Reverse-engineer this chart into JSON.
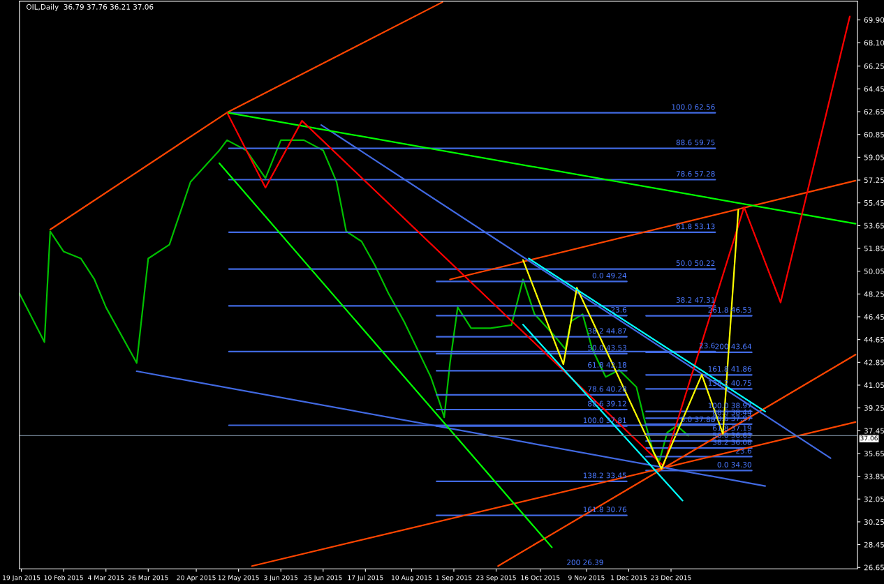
{
  "chart_data": {
    "type": "line",
    "title": "OIL,Daily  36.79 37.76 36.21 37.06",
    "xlim": [
      "2015-01-18",
      "2016-03-29"
    ],
    "ylim": [
      26.54,
      71.38
    ],
    "xticks": [
      {
        "value": "2015-01-19",
        "label": "19 Jan 2015"
      },
      {
        "value": "2015-02-10",
        "label": "10 Feb 2015"
      },
      {
        "value": "2015-03-04",
        "label": "4 Mar 2015"
      },
      {
        "value": "2015-03-26",
        "label": "26 Mar 2015"
      },
      {
        "value": "2015-04-20",
        "label": "20 Apr 2015"
      },
      {
        "value": "2015-05-12",
        "label": "12 May 2015"
      },
      {
        "value": "2015-06-03",
        "label": "3 Jun 2015"
      },
      {
        "value": "2015-06-25",
        "label": "25 Jun 2015"
      },
      {
        "value": "2015-07-17",
        "label": "17 Jul 2015"
      },
      {
        "value": "2015-08-10",
        "label": "10 Aug 2015"
      },
      {
        "value": "2015-09-01",
        "label": "1 Sep 2015"
      },
      {
        "value": "2015-09-23",
        "label": "23 Sep 2015"
      },
      {
        "value": "2015-10-16",
        "label": "16 Oct 2015"
      },
      {
        "value": "2015-11-09",
        "label": "9 Nov 2015"
      },
      {
        "value": "2015-12-01",
        "label": "1 Dec 2015"
      },
      {
        "value": "2015-12-23",
        "label": "23 Dec 2015"
      }
    ],
    "yticks": [
      26.65,
      28.45,
      30.25,
      32.05,
      33.85,
      35.65,
      37.45,
      39.25,
      41.05,
      42.85,
      44.65,
      46.45,
      48.25,
      50.05,
      51.85,
      53.65,
      55.45,
      57.25,
      59.05,
      60.85,
      62.65,
      64.45,
      66.25,
      {
        "value": 68.1,
        "label": "68.10"
      },
      {
        "value": 69.9,
        "label": "69.90"
      }
    ],
    "grid": false,
    "legend": false,
    "ref_lines": [
      {
        "axis": "y",
        "value": 37.06,
        "label": "37.06",
        "color": "#708090"
      }
    ],
    "series": [
      {
        "color": "#00c000",
        "x": [
          "2015-01-18",
          "2015-01-31",
          "2015-02-03",
          "2015-02-10",
          "2015-02-19",
          "2015-02-26",
          "2015-03-04",
          "2015-03-20",
          "2015-03-26",
          "2015-04-06",
          "2015-04-17",
          "2015-05-02",
          "2015-05-06",
          "2015-05-16",
          "2015-05-26",
          "2015-06-03",
          "2015-06-15",
          "2015-06-25",
          "2015-07-02",
          "2015-07-07",
          "2015-07-15",
          "2015-07-22",
          "2015-07-29",
          "2015-08-06",
          "2015-08-13",
          "2015-08-20",
          "2015-08-25",
          "2015-08-27",
          "2015-08-30",
          "2015-09-03",
          "2015-09-10",
          "2015-09-20",
          "2015-10-01",
          "2015-10-07",
          "2015-10-13",
          "2015-10-23",
          "2015-10-29",
          "2015-11-01",
          "2015-11-07",
          "2015-11-12",
          "2015-11-19",
          "2015-11-26",
          "2015-12-05",
          "2015-12-09",
          "2015-12-14",
          "2015-12-17",
          "2015-12-21",
          "2015-12-26",
          "2016-01-01"
        ],
        "values": [
          48.3,
          44.45,
          53.2,
          51.6,
          51.05,
          49.4,
          47.2,
          42.8,
          51.05,
          52.15,
          57.1,
          59.6,
          60.4,
          59.6,
          57.4,
          60.4,
          60.4,
          59.6,
          57.1,
          53.2,
          52.4,
          50.5,
          48.3,
          46.1,
          43.9,
          41.7,
          39.5,
          38.5,
          42.8,
          47.2,
          45.55,
          45.55,
          45.8,
          49.4,
          46.65,
          45.0,
          43.9,
          46.1,
          46.65,
          43.9,
          41.7,
          42.25,
          40.9,
          38.4,
          35.65,
          35.1,
          37.3,
          37.85,
          37.06
        ]
      },
      {
        "color": "#4169e1",
        "x": [
          "2015-05-07",
          "2016-01-15"
        ],
        "values": [
          62.56,
          62.56
        ]
      },
      {
        "color": "#4169e1",
        "x": [
          "2015-05-07",
          "2016-01-15"
        ],
        "values": [
          59.75,
          59.75
        ]
      },
      {
        "color": "#4169e1",
        "x": [
          "2015-05-07",
          "2016-01-15"
        ],
        "values": [
          57.28,
          57.28
        ]
      },
      {
        "color": "#4169e1",
        "x": [
          "2015-05-07",
          "2016-01-15"
        ],
        "values": [
          53.13,
          53.13
        ]
      },
      {
        "color": "#4169e1",
        "x": [
          "2015-05-07",
          "2016-01-15"
        ],
        "values": [
          50.22,
          50.22
        ]
      },
      {
        "color": "#4169e1",
        "x": [
          "2015-05-07",
          "2016-01-15"
        ],
        "values": [
          47.31,
          47.31
        ]
      },
      {
        "color": "#4169e1",
        "x": [
          "2015-05-07",
          "2016-01-15"
        ],
        "values": [
          43.7,
          43.7
        ]
      },
      {
        "color": "#4169e1",
        "x": [
          "2015-05-07",
          "2016-01-15"
        ],
        "values": [
          37.88,
          37.88
        ]
      },
      {
        "color": "#4169e1",
        "x": [
          "2015-08-23",
          "2015-11-30"
        ],
        "values": [
          49.24,
          49.24
        ]
      },
      {
        "color": "#4169e1",
        "x": [
          "2015-08-23",
          "2015-11-30"
        ],
        "values": [
          46.54,
          46.54
        ]
      },
      {
        "color": "#4169e1",
        "x": [
          "2015-08-23",
          "2015-11-30"
        ],
        "values": [
          44.87,
          44.87
        ]
      },
      {
        "color": "#4169e1",
        "x": [
          "2015-08-23",
          "2015-11-30"
        ],
        "values": [
          43.53,
          43.53
        ]
      },
      {
        "color": "#4169e1",
        "x": [
          "2015-08-23",
          "2015-11-30"
        ],
        "values": [
          42.18,
          42.18
        ]
      },
      {
        "color": "#4169e1",
        "x": [
          "2015-08-23",
          "2015-11-30"
        ],
        "values": [
          40.28,
          40.28
        ]
      },
      {
        "color": "#4169e1",
        "x": [
          "2015-08-23",
          "2015-11-30"
        ],
        "values": [
          39.12,
          39.12
        ]
      },
      {
        "color": "#4169e1",
        "x": [
          "2015-08-23",
          "2015-11-30"
        ],
        "values": [
          37.81,
          37.81
        ]
      },
      {
        "color": "#4169e1",
        "x": [
          "2015-08-23",
          "2015-11-30"
        ],
        "values": [
          33.45,
          33.45
        ]
      },
      {
        "color": "#4169e1",
        "x": [
          "2015-08-23",
          "2015-11-30"
        ],
        "values": [
          30.76,
          30.76
        ]
      },
      {
        "color": "#4169e1",
        "x": [
          "2015-12-10",
          "2016-02-03"
        ],
        "values": [
          46.53,
          46.53
        ]
      },
      {
        "color": "#4169e1",
        "x": [
          "2015-12-10",
          "2016-02-03"
        ],
        "values": [
          43.64,
          43.64
        ]
      },
      {
        "color": "#4169e1",
        "x": [
          "2015-12-10",
          "2016-02-03"
        ],
        "values": [
          41.86,
          41.86
        ]
      },
      {
        "color": "#4169e1",
        "x": [
          "2015-12-10",
          "2016-02-03"
        ],
        "values": [
          40.75,
          40.75
        ]
      },
      {
        "color": "#4169e1",
        "x": [
          "2015-12-10",
          "2016-02-03"
        ],
        "values": [
          38.97,
          38.97
        ]
      },
      {
        "color": "#4169e1",
        "x": [
          "2015-12-10",
          "2016-02-03"
        ],
        "values": [
          38.44,
          38.44
        ]
      },
      {
        "color": "#4169e1",
        "x": [
          "2015-12-10",
          "2016-02-03"
        ],
        "values": [
          37.97,
          37.97
        ]
      },
      {
        "color": "#4169e1",
        "x": [
          "2015-12-10",
          "2016-02-03"
        ],
        "values": [
          37.19,
          37.19
        ]
      },
      {
        "color": "#4169e1",
        "x": [
          "2015-12-10",
          "2016-02-03"
        ],
        "values": [
          36.63,
          36.63
        ]
      },
      {
        "color": "#4169e1",
        "x": [
          "2015-12-10",
          "2016-02-03"
        ],
        "values": [
          36.08,
          36.08
        ]
      },
      {
        "color": "#4169e1",
        "x": [
          "2015-12-10",
          "2016-02-03"
        ],
        "values": [
          35.4,
          35.4
        ]
      },
      {
        "color": "#4169e1",
        "x": [
          "2015-12-10",
          "2016-02-03"
        ],
        "values": [
          34.3,
          34.3
        ]
      },
      {
        "color": "#ff4500",
        "x": [
          "2015-02-03",
          "2015-05-06",
          "2015-08-26"
        ],
        "values": [
          53.34,
          62.58,
          71.3
        ]
      },
      {
        "color": "#ff4500",
        "x": [
          "2015-08-30",
          "2016-03-28"
        ],
        "values": [
          49.4,
          57.2
        ]
      },
      {
        "color": "#ff4500",
        "x": [
          "2015-05-19",
          "2016-03-28"
        ],
        "values": [
          26.76,
          38.13
        ]
      },
      {
        "color": "#ff4500",
        "x": [
          "2015-09-24",
          "2016-03-28"
        ],
        "values": [
          26.76,
          43.46
        ]
      },
      {
        "color": "#4169e1",
        "x": [
          "2015-03-20",
          "2016-02-10"
        ],
        "values": [
          42.15,
          33.08
        ]
      },
      {
        "color": "#4169e1",
        "x": [
          "2015-06-24",
          "2016-03-15"
        ],
        "values": [
          61.6,
          35.28
        ]
      },
      {
        "color": "#00ff00",
        "x": [
          "2015-05-06",
          "2016-03-28"
        ],
        "values": [
          62.58,
          53.8
        ]
      },
      {
        "color": "#00ff00",
        "x": [
          "2015-05-02",
          "2015-10-22"
        ],
        "values": [
          58.58,
          28.24
        ]
      },
      {
        "color": "#ff0000",
        "x": [
          "2015-05-06",
          "2015-05-26",
          "2015-06-14",
          "2015-12-19",
          "2016-01-30",
          "2016-02-18",
          "2016-03-25"
        ],
        "values": [
          62.58,
          56.65,
          61.93,
          34.67,
          55.11,
          47.58,
          70.17
        ]
      },
      {
        "color": "#ffff00",
        "x": [
          "2015-10-07",
          "2015-10-28",
          "2015-11-04",
          "2015-12-18",
          "2016-01-08",
          "2016-01-19",
          "2016-01-27"
        ],
        "values": [
          50.94,
          42.69,
          48.74,
          34.45,
          41.87,
          37.2,
          54.89
        ]
      },
      {
        "color": "#00ffff",
        "x": [
          "2015-10-10",
          "2016-02-10"
        ],
        "values": [
          51.05,
          38.96
        ]
      },
      {
        "color": "#00ffff",
        "x": [
          "2015-10-07",
          "2015-12-29"
        ],
        "values": [
          45.83,
          31.93
        ]
      }
    ],
    "annotations": [
      {
        "text": "100.0 62.56",
        "x": "2016-01-15",
        "y": 62.56
      },
      {
        "text": "88.6 59.75",
        "x": "2016-01-15",
        "y": 59.75
      },
      {
        "text": "78.6 57.28",
        "x": "2016-01-15",
        "y": 57.28
      },
      {
        "text": "61.8 53.13",
        "x": "2016-01-15",
        "y": 53.13
      },
      {
        "text": "50.0 50.22",
        "x": "2016-01-15",
        "y": 50.22
      },
      {
        "text": "38.2 47.31",
        "x": "2016-01-15",
        "y": 47.31
      },
      {
        "text": "23.6",
        "x": "2016-01-15",
        "y": 43.7
      },
      {
        "text": "0.0 37.88",
        "x": "2016-01-15",
        "y": 37.88
      },
      {
        "text": "0.0 49.24",
        "x": "2015-11-30",
        "y": 49.24
      },
      {
        "text": "23.6",
        "x": "2015-11-30",
        "y": 46.54
      },
      {
        "text": "38.2 44.87",
        "x": "2015-11-30",
        "y": 44.87
      },
      {
        "text": "50.0 43.53",
        "x": "2015-11-30",
        "y": 43.53
      },
      {
        "text": "61.8 42.18",
        "x": "2015-11-30",
        "y": 42.18
      },
      {
        "text": "78.6 40.28",
        "x": "2015-11-30",
        "y": 40.28
      },
      {
        "text": "88.6 39.12",
        "x": "2015-11-30",
        "y": 39.12
      },
      {
        "text": "100.0 37.81",
        "x": "2015-11-30",
        "y": 37.81
      },
      {
        "text": "138.2 33.45",
        "x": "2015-11-30",
        "y": 33.45
      },
      {
        "text": "161.8 30.76",
        "x": "2015-11-30",
        "y": 30.76
      },
      "200 26.39",
      {
        "text": "261.8 46.53",
        "x": "2016-02-03",
        "y": 46.53
      },
      {
        "text": "200 43.64",
        "x": "2016-02-03",
        "y": 43.64
      },
      {
        "text": "161.8 41.86",
        "x": "2016-02-03",
        "y": 41.86
      },
      {
        "text": "138.2 40.75",
        "x": "2016-02-03",
        "y": 40.75
      },
      {
        "text": "100.0 38.97",
        "x": "2016-02-03",
        "y": 38.97
      },
      {
        "text": "88.6 38.44",
        "x": "2016-02-03",
        "y": 38.44
      },
      {
        "text": "78.6 37.97",
        "x": "2016-02-03",
        "y": 37.97
      },
      {
        "text": "61.8 37.19",
        "x": "2016-02-03",
        "y": 37.19
      },
      {
        "text": "50.0 36.63",
        "x": "2016-02-03",
        "y": 36.63
      },
      {
        "text": "38.2 36.08",
        "x": "2016-02-03",
        "y": 36.08
      },
      {
        "text": "23.6",
        "x": "2016-02-03",
        "y": 35.4
      },
      {
        "text": "0.0 34.30",
        "x": "2016-02-03",
        "y": 34.3
      }
    ]
  }
}
